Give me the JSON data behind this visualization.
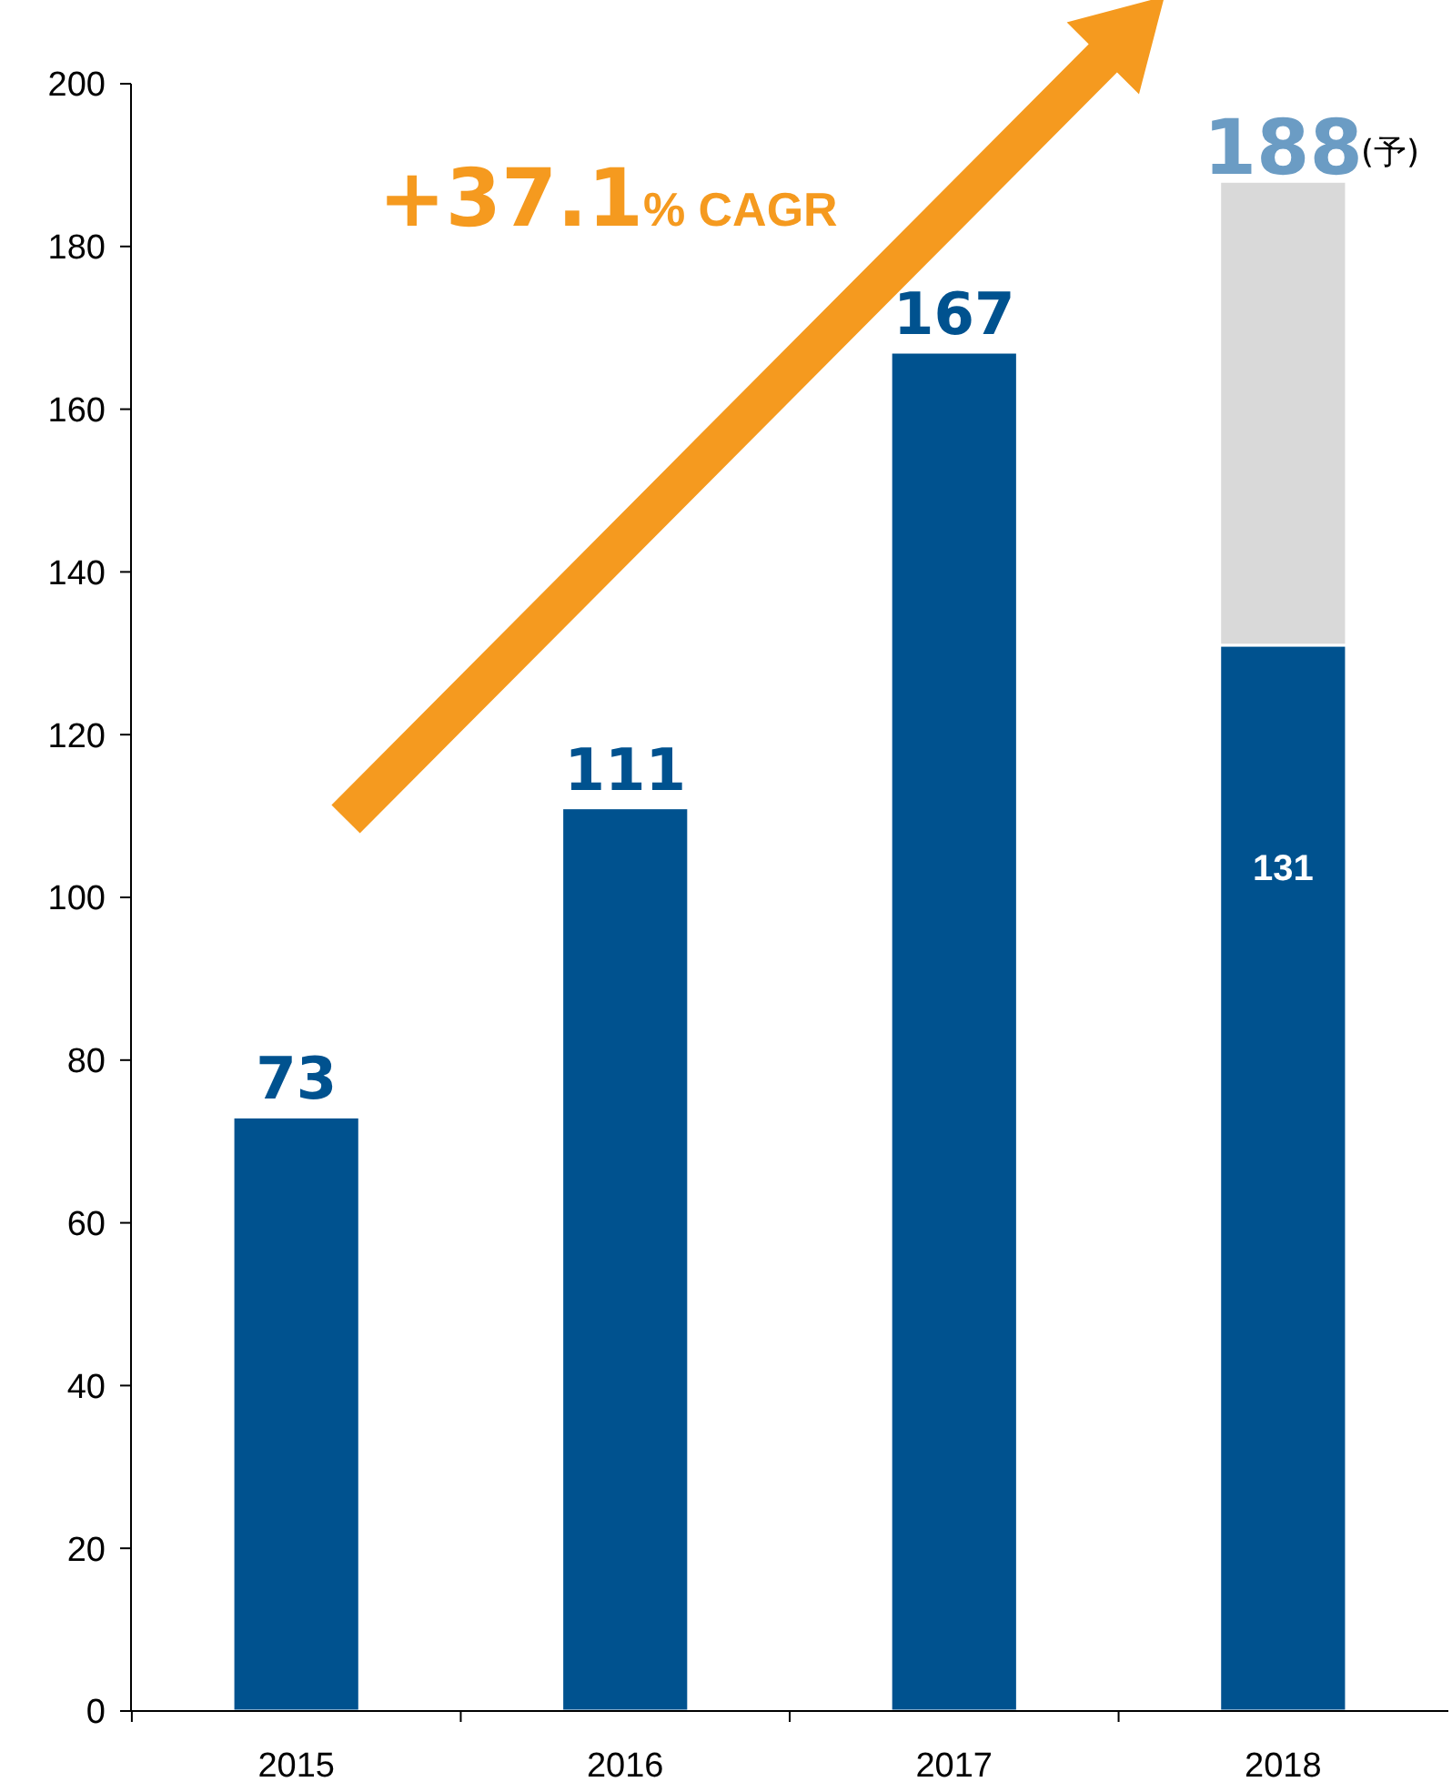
{
  "chart_data": {
    "type": "bar",
    "stacked": true,
    "categories": [
      "2015",
      "2016",
      "2017",
      "2018"
    ],
    "series": [
      {
        "color": "#00528f",
        "values": [
          73,
          111,
          167,
          131
        ],
        "value_labels": [
          null,
          null,
          null,
          "131"
        ]
      },
      {
        "color": "#d9d9d9",
        "values": [
          null,
          null,
          null,
          57
        ]
      }
    ],
    "totals": [
      "73",
      "111",
      "167",
      "188"
    ],
    "ylim": [
      0,
      200
    ],
    "yticks": [
      0,
      20,
      40,
      60,
      80,
      100,
      120,
      140,
      160,
      180,
      200
    ],
    "grid": false,
    "annotations": [
      "+37.1% CAGR",
      {
        "text": "(予)",
        "x": "2018",
        "y": 188
      }
    ]
  }
}
